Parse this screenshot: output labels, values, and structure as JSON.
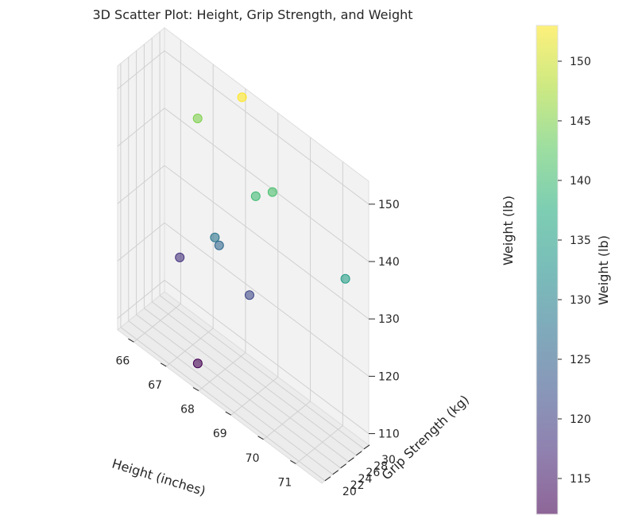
{
  "chart_data": {
    "type": "scatter",
    "title": "3D Scatter Plot: Height, Grip Strength, and Weight",
    "xlabel": "Height (inches)",
    "ylabel": "Grip Strength (kg)",
    "zlabel": "Weight (lb)",
    "colorbar_label": "Weight (lb)",
    "x_ticks": [
      "66",
      "67",
      "68",
      "69",
      "70",
      "71"
    ],
    "y_ticks": [
      "20",
      "22",
      "24",
      "26",
      "28",
      "30"
    ],
    "z_ticks": [
      "110",
      "120",
      "130",
      "140",
      "150"
    ],
    "colorbar_ticks": [
      "115",
      "120",
      "125",
      "130",
      "135",
      "140",
      "145",
      "150"
    ],
    "xlim": [
      65.5,
      71.8
    ],
    "ylim": [
      19.2,
      31.2
    ],
    "zlim": [
      108,
      154
    ],
    "colorbar_range": [
      112,
      153
    ],
    "colormap": "viridis",
    "grid": true,
    "points": [
      {
        "x": 67.9,
        "y": 19.8,
        "z": 112
      },
      {
        "x": 66.2,
        "y": 29.3,
        "z": 118
      },
      {
        "x": 67.5,
        "y": 28.6,
        "z": 126
      },
      {
        "x": 68.4,
        "y": 28.9,
        "z": 121
      },
      {
        "x": 67.5,
        "y": 27.5,
        "z": 128
      },
      {
        "x": 66.8,
        "y": 28.9,
        "z": 145
      },
      {
        "x": 69.0,
        "y": 29.8,
        "z": 141
      },
      {
        "x": 68.7,
        "y": 28.0,
        "z": 140
      },
      {
        "x": 68.0,
        "y": 30.3,
        "z": 153
      },
      {
        "x": 71.2,
        "y": 30.2,
        "z": 135
      }
    ]
  }
}
